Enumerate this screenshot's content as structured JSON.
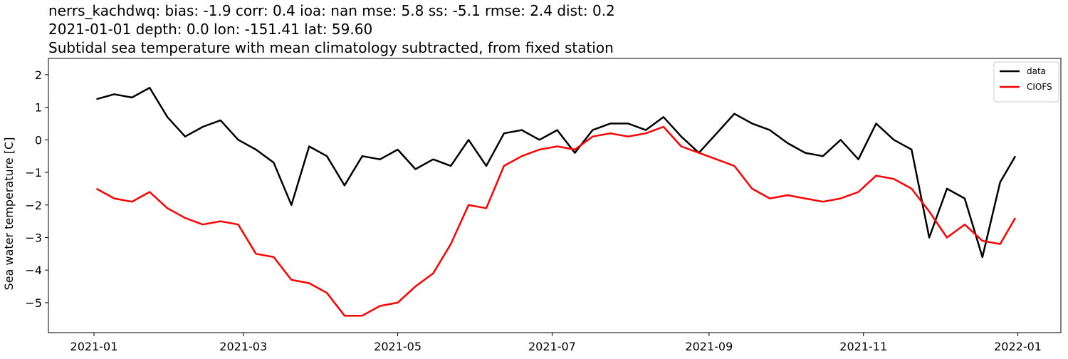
{
  "chart_data": {
    "type": "line",
    "title": "nerrs_kachdwq: bias: -1.9  corr: 0.4  ioa: nan  mse: 5.8  ss: -5.1  rmse: 2.4  dist: 0.2",
    "subtitle": "2021-01-01 depth: 0.0 lon: -151.41 lat: 59.60",
    "description": "Subtidal sea temperature with mean climatology subtracted, from fixed station",
    "y_label": "Sea water temperature [C]",
    "x": [
      "2021-01-02",
      "2021-01-09",
      "2021-01-16",
      "2021-01-23",
      "2021-01-30",
      "2021-02-06",
      "2021-02-13",
      "2021-02-20",
      "2021-02-27",
      "2021-03-06",
      "2021-03-13",
      "2021-03-20",
      "2021-03-27",
      "2021-04-03",
      "2021-04-10",
      "2021-04-17",
      "2021-04-24",
      "2021-05-01",
      "2021-05-08",
      "2021-05-15",
      "2021-05-22",
      "2021-05-29",
      "2021-06-05",
      "2021-06-12",
      "2021-06-19",
      "2021-06-26",
      "2021-07-03",
      "2021-07-10",
      "2021-07-17",
      "2021-07-24",
      "2021-07-31",
      "2021-08-07",
      "2021-08-14",
      "2021-08-21",
      "2021-08-28",
      "2021-09-04",
      "2021-09-11",
      "2021-09-18",
      "2021-09-25",
      "2021-10-02",
      "2021-10-09",
      "2021-10-16",
      "2021-10-23",
      "2021-10-30",
      "2021-11-06",
      "2021-11-13",
      "2021-11-20",
      "2021-11-27",
      "2021-12-04",
      "2021-12-11",
      "2021-12-18",
      "2021-12-25",
      "2021-12-31"
    ],
    "series": [
      {
        "name": "data",
        "color": "#000000",
        "values": [
          1.25,
          1.4,
          1.3,
          1.6,
          0.7,
          0.1,
          0.4,
          0.6,
          0.0,
          -0.3,
          -0.7,
          -2.0,
          -0.2,
          -0.5,
          -1.4,
          -0.5,
          -0.6,
          -0.3,
          -0.9,
          -0.6,
          -0.8,
          0.0,
          -0.8,
          0.2,
          0.3,
          0.0,
          0.3,
          -0.4,
          0.3,
          0.5,
          0.5,
          0.3,
          0.7,
          0.1,
          -0.4,
          0.2,
          0.8,
          0.5,
          0.3,
          -0.1,
          -0.4,
          -0.5,
          0.0,
          -0.6,
          0.5,
          0.0,
          -0.3,
          -3.0,
          -1.5,
          -1.8,
          -3.6,
          -1.3,
          -0.5
        ]
      },
      {
        "name": "CIOFS",
        "color": "#ff0000",
        "values": [
          -1.5,
          -1.8,
          -1.9,
          -1.6,
          -2.1,
          -2.4,
          -2.6,
          -2.5,
          -2.6,
          -3.5,
          -3.6,
          -4.3,
          -4.4,
          -4.7,
          -5.4,
          -5.4,
          -5.1,
          -5.0,
          -4.5,
          -4.1,
          -3.2,
          -2.0,
          -2.1,
          -0.8,
          -0.5,
          -0.3,
          -0.2,
          -0.3,
          0.1,
          0.2,
          0.1,
          0.2,
          0.4,
          -0.2,
          -0.4,
          -0.6,
          -0.8,
          -1.5,
          -1.8,
          -1.7,
          -1.8,
          -1.9,
          -1.8,
          -1.6,
          -1.1,
          -1.2,
          -1.5,
          -2.2,
          -3.0,
          -2.6,
          -3.1,
          -3.2,
          -2.4
        ]
      }
    ],
    "xlim": [
      "2020-12-14",
      "2022-01-18"
    ],
    "xticks": [
      {
        "value": "2021-01-01",
        "label": "2021-01"
      },
      {
        "value": "2021-03-01",
        "label": "2021-03"
      },
      {
        "value": "2021-05-01",
        "label": "2021-05"
      },
      {
        "value": "2021-07-01",
        "label": "2021-07"
      },
      {
        "value": "2021-09-01",
        "label": "2021-09"
      },
      {
        "value": "2021-11-01",
        "label": "2021-11"
      },
      {
        "value": "2022-01-01",
        "label": "2022-01"
      }
    ],
    "ylim": [
      -5.92,
      2.5
    ],
    "yticks": [
      {
        "value": -5,
        "label": "−5"
      },
      {
        "value": -4,
        "label": "−4"
      },
      {
        "value": -3,
        "label": "−3"
      },
      {
        "value": -2,
        "label": "−2"
      },
      {
        "value": -1,
        "label": "−1"
      },
      0,
      1,
      2
    ],
    "grid": false,
    "legend": "upper right"
  }
}
